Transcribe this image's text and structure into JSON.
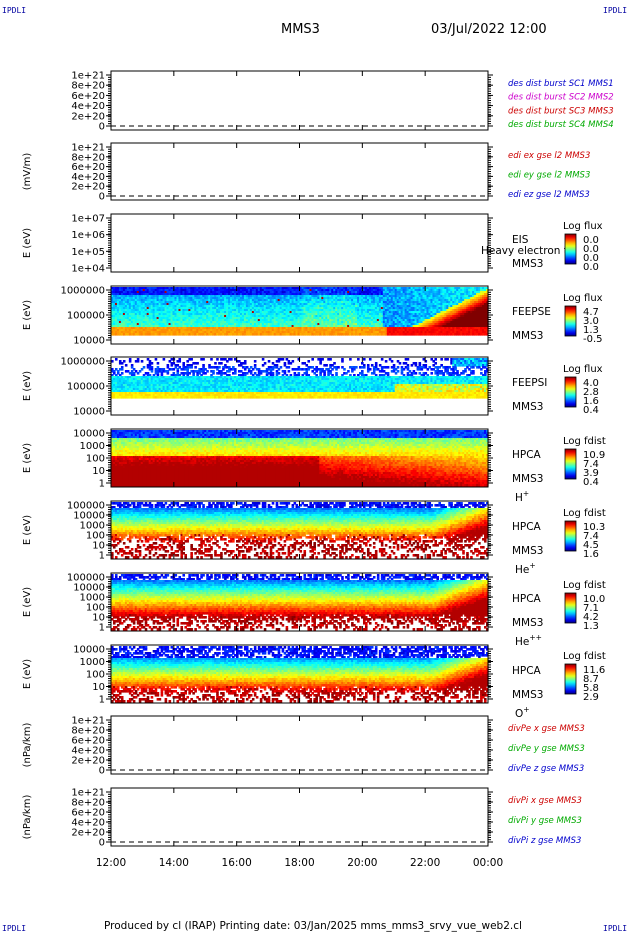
{
  "corner_label": "IPDLI",
  "header": {
    "title": "MMS3",
    "datetime": "03/Jul/2022 12:00"
  },
  "footer": {
    "text": "Produced by cl (IRAP)   Printing date: 03/Jan/2025   mms_mms3_srvy_vue_web2.cl"
  },
  "chart_data": {
    "type": "heatmap",
    "x_ticks": [
      "12:00",
      "14:00",
      "16:00",
      "18:00",
      "20:00",
      "22:00",
      "00:00"
    ],
    "panels": [
      {
        "id": "des-dist",
        "type": "line",
        "ylabel": "",
        "yticks": [
          "1e+21",
          "8e+20",
          "6e+20",
          "4e+20",
          "2e+20",
          "0"
        ],
        "series": [
          {
            "name": "des dist burst SC1 MMS1",
            "color": "#0000cc"
          },
          {
            "name": "des dist burst SC2 MMS2",
            "color": "#cc00cc"
          },
          {
            "name": "des dist burst SC3 MMS3",
            "color": "#cc0000"
          },
          {
            "name": "des dist burst SC4 MMS4",
            "color": "#00aa00"
          }
        ]
      },
      {
        "id": "edi-e",
        "type": "line",
        "ylabel": "(mV/m)",
        "yticks": [
          "1e+21",
          "8e+20",
          "6e+20",
          "4e+20",
          "2e+20",
          "0"
        ],
        "series": [
          {
            "name": "edi ex gse l2 MMS3",
            "color": "#cc0000"
          },
          {
            "name": "edi ey gse l2 MMS3",
            "color": "#00aa00"
          },
          {
            "name": "edi ez gse l2 MMS3",
            "color": "#0000cc"
          }
        ]
      },
      {
        "id": "eis",
        "type": "heatmap",
        "ylabel": "E (eV)",
        "yticks": [
          "1e+07",
          "1e+06",
          "1e+05",
          "1e+04"
        ],
        "labels": [
          "EIS",
          "MMS3"
        ],
        "overlay": "Heavy electron to",
        "colorbar": {
          "title": "Log flux",
          "ticks": [
            "0.0",
            "0.0",
            "0.0",
            "0.0"
          ]
        }
      },
      {
        "id": "feepse",
        "type": "heatmap",
        "ylabel": "E (eV)",
        "yticks": [
          "1000000",
          "100000",
          "10000"
        ],
        "labels": [
          "FEEPSE",
          "MMS3"
        ],
        "colorbar": {
          "title": "Log flux",
          "ticks": [
            "4.7",
            "3.0",
            "1.3",
            "-0.5"
          ]
        }
      },
      {
        "id": "feepsi",
        "type": "heatmap",
        "ylabel": "E (eV)",
        "yticks": [
          "1000000",
          "100000",
          "10000"
        ],
        "labels": [
          "FEEPSI",
          "MMS3"
        ],
        "colorbar": {
          "title": "Log flux",
          "ticks": [
            "4.0",
            "2.8",
            "1.6",
            "0.4"
          ]
        }
      },
      {
        "id": "hpca-h",
        "type": "heatmap",
        "ylabel": "E (eV)",
        "yticks": [
          "10000",
          "1000",
          "100",
          "10",
          "1"
        ],
        "labels": [
          "HPCA",
          "MMS3"
        ],
        "species": "H",
        "charge": "+",
        "colorbar": {
          "title": "Log fdist",
          "ticks": [
            "10.9",
            "7.4",
            "3.9",
            "0.4"
          ]
        }
      },
      {
        "id": "hpca-he",
        "type": "heatmap",
        "ylabel": "E (eV)",
        "yticks": [
          "100000",
          "10000",
          "1000",
          "100",
          "10",
          "1"
        ],
        "labels": [
          "HPCA",
          "MMS3"
        ],
        "species": "He",
        "charge": "+",
        "colorbar": {
          "title": "Log fdist",
          "ticks": [
            "10.3",
            "7.4",
            "4.5",
            "1.6"
          ]
        }
      },
      {
        "id": "hpca-he2",
        "type": "heatmap",
        "ylabel": "E (eV)",
        "yticks": [
          "100000",
          "10000",
          "1000",
          "100",
          "10",
          "1"
        ],
        "labels": [
          "HPCA",
          "MMS3"
        ],
        "species": "He",
        "charge": "++",
        "colorbar": {
          "title": "Log fdist",
          "ticks": [
            "10.0",
            "7.1",
            "4.2",
            "1.3"
          ]
        }
      },
      {
        "id": "hpca-o",
        "type": "heatmap",
        "ylabel": "E (eV)",
        "yticks": [
          "10000",
          "1000",
          "100",
          "10",
          "1"
        ],
        "labels": [
          "HPCA",
          "MMS3"
        ],
        "species": "O",
        "charge": "+",
        "colorbar": {
          "title": "Log fdist",
          "ticks": [
            "11.6",
            "8.7",
            "5.8",
            "2.9"
          ]
        }
      },
      {
        "id": "divpe",
        "type": "line",
        "ylabel": "(nPa/km)",
        "yticks": [
          "1e+21",
          "8e+20",
          "6e+20",
          "4e+20",
          "2e+20",
          "0"
        ],
        "series": [
          {
            "name": "divPe x gse MMS3",
            "color": "#cc0000"
          },
          {
            "name": "divPe y gse MMS3",
            "color": "#00aa00"
          },
          {
            "name": "divPe z gse MMS3",
            "color": "#0000cc"
          }
        ]
      },
      {
        "id": "divpi",
        "type": "line",
        "ylabel": "(nPa/km)",
        "yticks": [
          "1e+21",
          "8e+20",
          "6e+20",
          "4e+20",
          "2e+20",
          "0"
        ],
        "series": [
          {
            "name": "divPi x gse MMS3",
            "color": "#cc0000"
          },
          {
            "name": "divPi y gse MMS3",
            "color": "#00aa00"
          },
          {
            "name": "divPi z gse MMS3",
            "color": "#0000cc"
          }
        ]
      }
    ]
  }
}
